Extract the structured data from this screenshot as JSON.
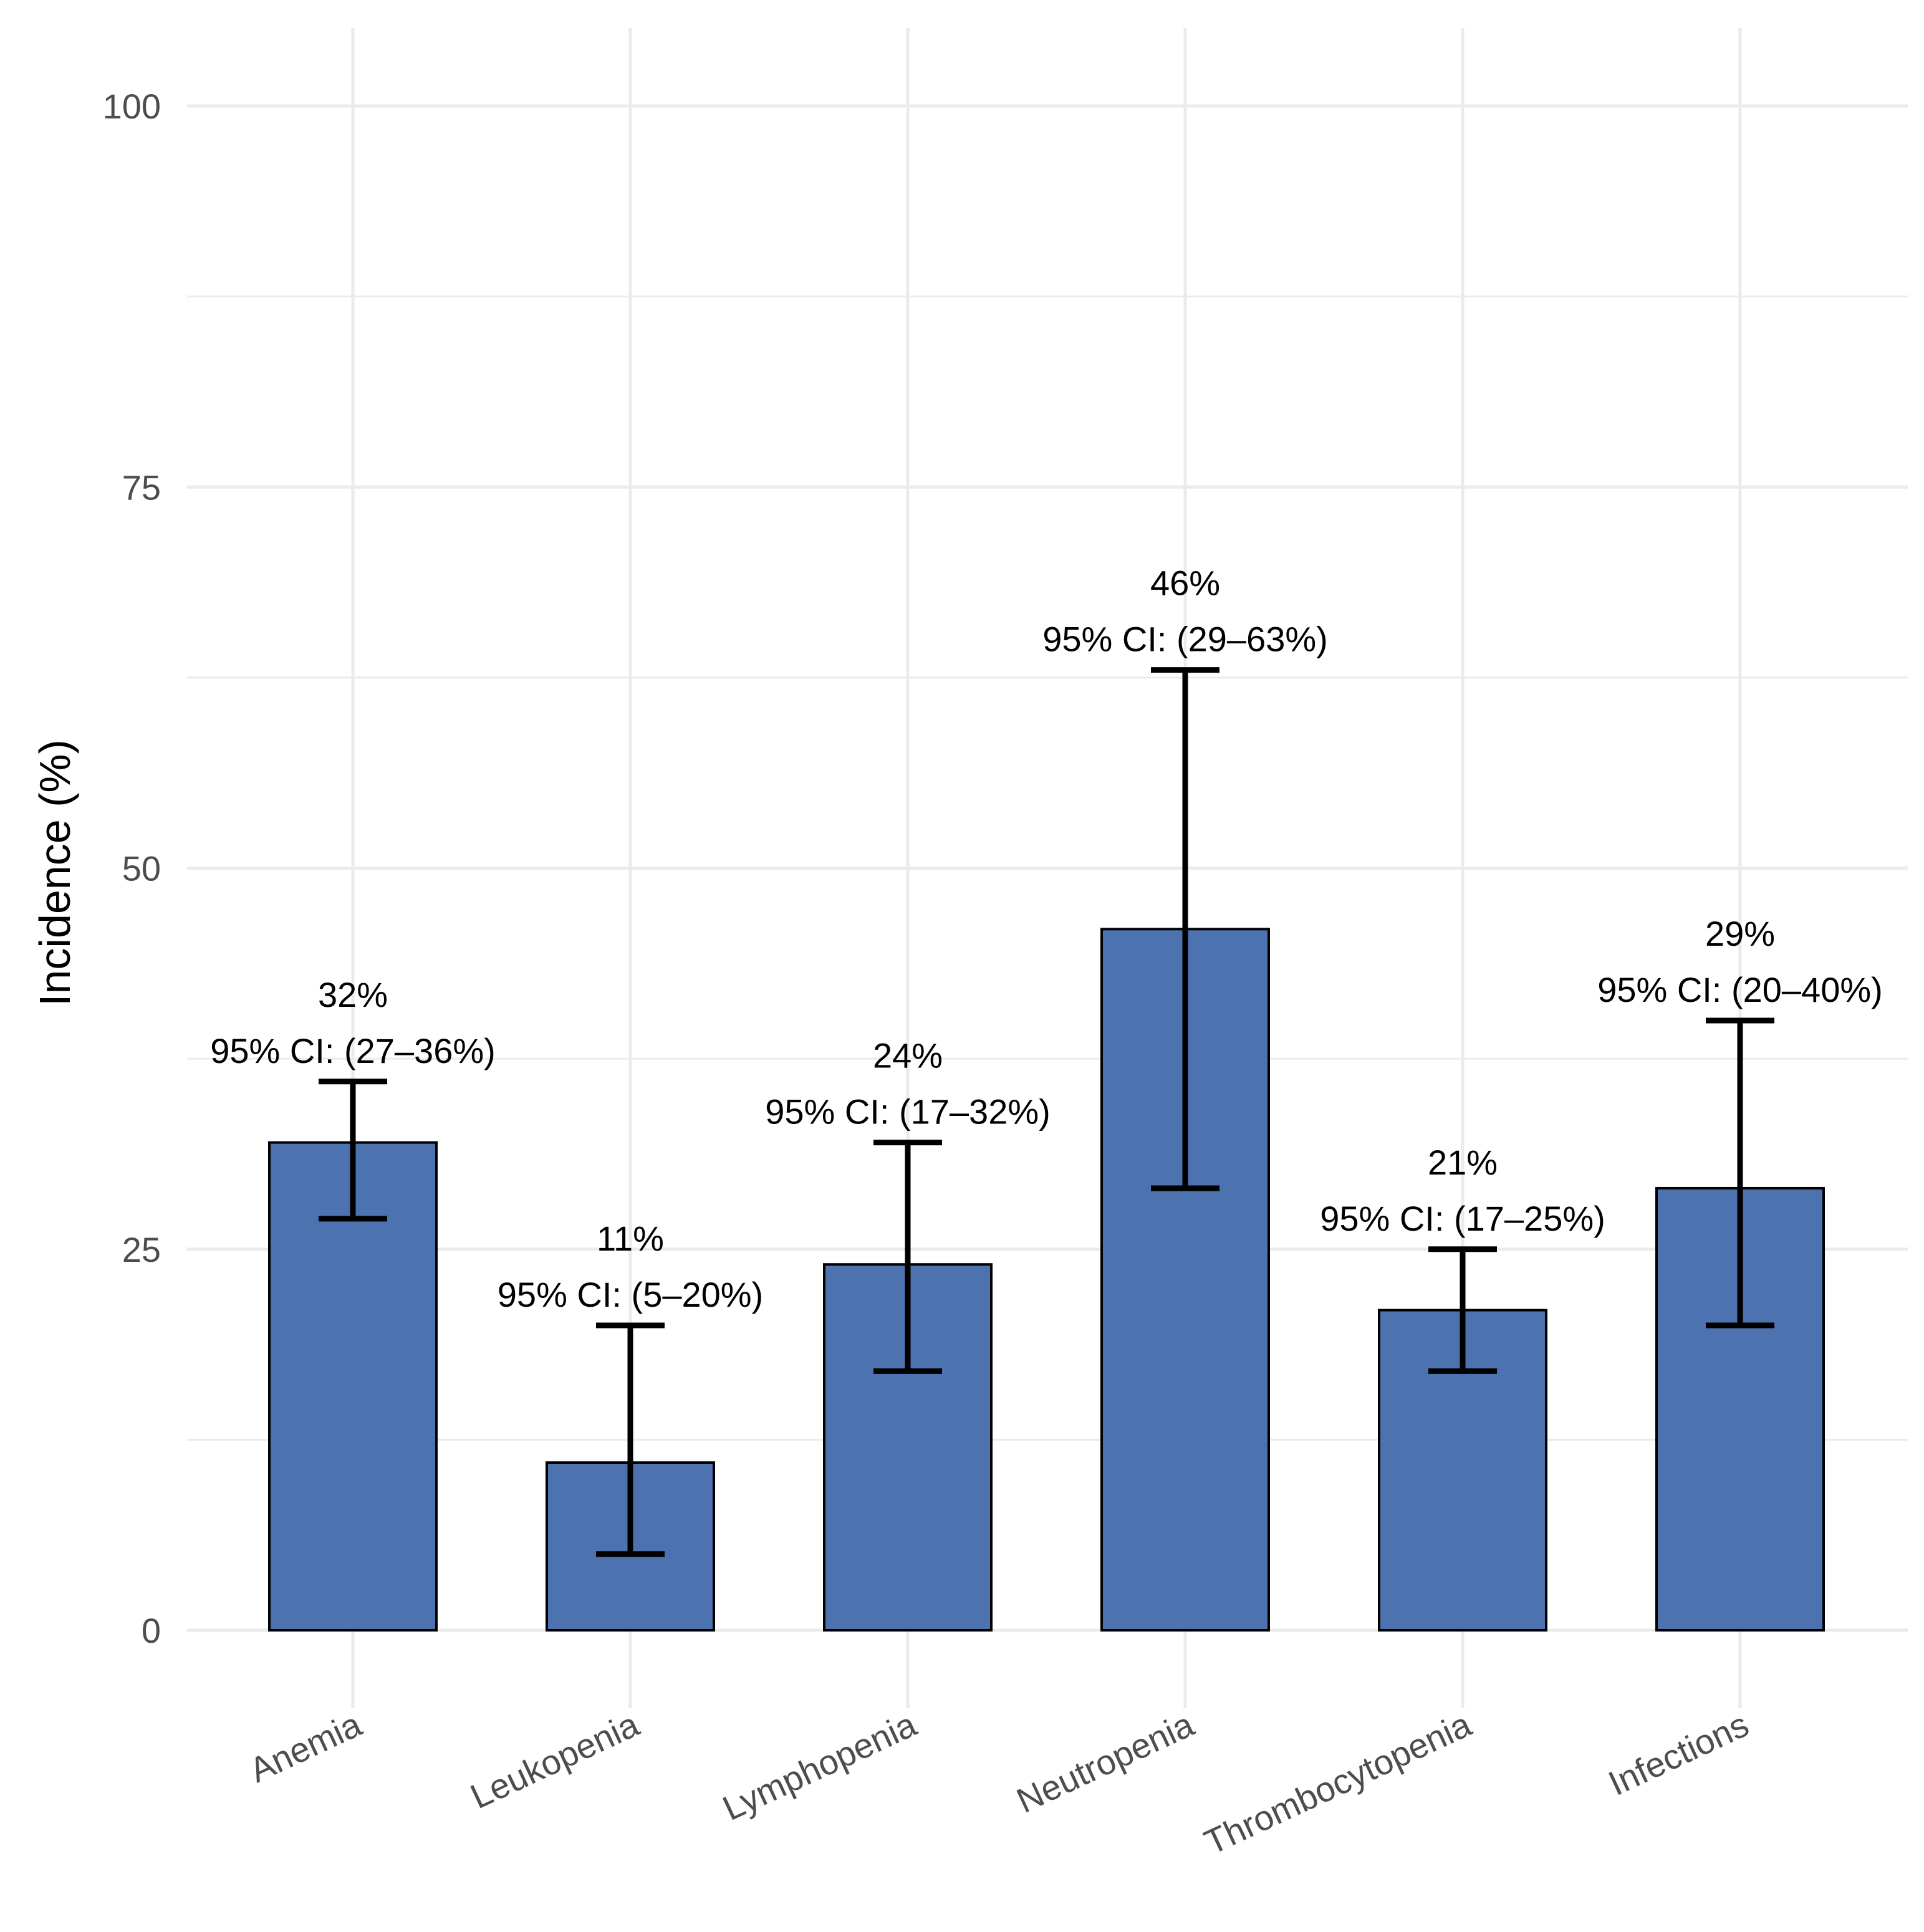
{
  "chart_data": {
    "type": "bar",
    "title": "",
    "xlabel": "",
    "ylabel": "Incidence (%)",
    "ylim": [
      0,
      100
    ],
    "yticks": [
      "0",
      "25",
      "50",
      "75",
      "100"
    ],
    "categories": [
      "Anemia",
      "Leukopenia",
      "Lymphopenia",
      "Neutropenia",
      "Thrombocytopenia",
      "Infections"
    ],
    "values": [
      32,
      11,
      24,
      46,
      21,
      29
    ],
    "ci_lower": [
      27,
      5,
      17,
      29,
      17,
      20
    ],
    "ci_upper": [
      36,
      20,
      32,
      63,
      25,
      40
    ],
    "value_labels": [
      "32%",
      "11%",
      "24%",
      "46%",
      "21%",
      "29%"
    ],
    "ci_labels": [
      "95% CI: (27–36%)",
      "95% CI: (5–20%)",
      "95% CI: (17–32%)",
      "95% CI: (29–63%)",
      "95% CI: (17–25%)",
      "95% CI: (20–40%)"
    ],
    "bar_color": "#4c72b0",
    "grid": true
  }
}
